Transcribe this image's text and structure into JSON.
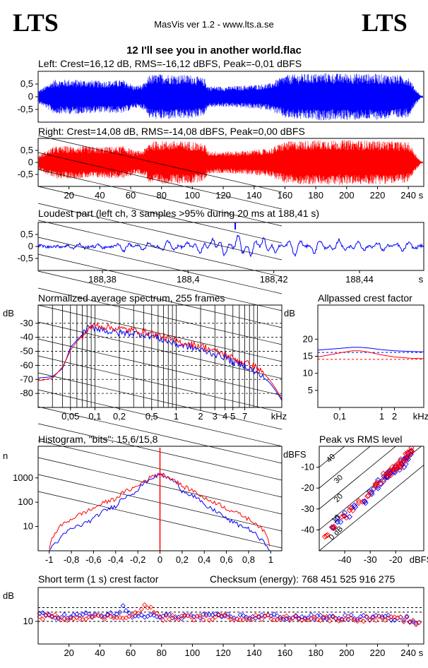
{
  "header": {
    "logo_left": "LTS",
    "logo_right": "LTS",
    "version": "MasVis ver 1.2 - www.lts.a.se",
    "track": "12 I'll see you in another world.flac"
  },
  "colors": {
    "left": "#0000ff",
    "right": "#ff0000",
    "frame": "#000000",
    "dash": "#000000"
  },
  "chart_data": [
    {
      "id": "left",
      "type": "line",
      "title": "Left: Crest=16,12 dB, RMS=-16,12 dBFS, Peak=-0,01 dBFS",
      "xlabel": "",
      "ylabel": "",
      "xlim": [
        0,
        250
      ],
      "ylim": [
        -1,
        1
      ],
      "yticks": [
        "0,5",
        "0",
        "-0,5"
      ],
      "ytick_values": [
        0.5,
        0,
        -0.5
      ],
      "series": [
        {
          "color": "blue",
          "envelope_x": [
            0,
            5,
            10,
            20,
            30,
            40,
            50,
            55,
            60,
            62,
            67,
            70,
            72,
            80,
            90,
            100,
            108,
            110,
            120,
            130,
            140,
            150,
            160,
            170,
            180,
            188,
            190,
            200,
            210,
            220,
            230,
            240,
            243,
            245,
            248
          ],
          "envelope_amp": [
            0.25,
            0.45,
            0.7,
            0.72,
            0.7,
            0.66,
            0.68,
            0.7,
            0.55,
            0.45,
            0.5,
            0.6,
            0.9,
            0.95,
            0.92,
            0.9,
            0.75,
            0.45,
            0.42,
            0.45,
            0.5,
            0.55,
            0.9,
            0.95,
            0.96,
            1.0,
            0.96,
            0.97,
            0.96,
            0.95,
            0.92,
            0.85,
            0.5,
            0.3,
            0.05
          ]
        }
      ]
    },
    {
      "id": "right",
      "type": "line",
      "title": "Right: Crest=14,08 dB, RMS=-14,08 dBFS, Peak=0,00 dBFS",
      "xlabel": "s",
      "ylabel": "",
      "xlim": [
        0,
        250
      ],
      "ylim": [
        -1,
        1
      ],
      "yticks": [
        "0,5",
        "0",
        "-0,5"
      ],
      "ytick_values": [
        0.5,
        0,
        -0.5
      ],
      "xticks": [
        "20",
        "40",
        "60",
        "80",
        "100",
        "120",
        "140",
        "160",
        "180",
        "200",
        "220",
        "240",
        "s"
      ],
      "xtick_values": [
        20,
        40,
        60,
        80,
        100,
        120,
        140,
        160,
        180,
        200,
        220,
        240
      ],
      "series": [
        {
          "color": "red",
          "envelope_x": [
            0,
            5,
            10,
            20,
            30,
            40,
            50,
            55,
            60,
            62,
            67,
            70,
            72,
            80,
            90,
            100,
            108,
            110,
            120,
            130,
            140,
            150,
            160,
            170,
            180,
            188,
            190,
            200,
            210,
            220,
            230,
            240,
            243,
            245,
            248
          ],
          "envelope_amp": [
            0.3,
            0.5,
            0.7,
            0.72,
            0.7,
            0.68,
            0.7,
            0.72,
            0.6,
            0.5,
            0.52,
            0.65,
            0.92,
            0.95,
            0.94,
            0.93,
            0.8,
            0.5,
            0.48,
            0.5,
            0.55,
            0.6,
            0.92,
            0.96,
            0.98,
            1.0,
            0.98,
            0.98,
            0.97,
            0.96,
            0.94,
            0.88,
            0.6,
            0.35,
            0.05
          ]
        }
      ]
    },
    {
      "id": "loudest",
      "type": "line",
      "title": "Loudest part (left  ch, 3 samples >95% during 20 ms at 188,41 s)",
      "xlabel": "s",
      "ylabel": "",
      "xlim": [
        188.365,
        188.455
      ],
      "ylim": [
        -1,
        1
      ],
      "yticks": [
        "0,5",
        "0",
        "-0,5"
      ],
      "ytick_values": [
        0.5,
        0,
        -0.5
      ],
      "xticks": [
        "188,38",
        "188,4",
        "188,42",
        "188,44",
        "s"
      ],
      "xtick_values": [
        188.38,
        188.4,
        188.42,
        188.44
      ],
      "series": [
        {
          "color": "blue",
          "x": [
            188.365,
            188.37,
            188.375,
            188.38,
            188.385,
            188.39,
            188.395,
            188.4,
            188.403,
            188.406,
            188.408,
            188.41,
            188.412,
            188.415,
            188.418,
            188.42,
            188.425,
            188.43,
            188.435,
            188.44,
            188.445,
            188.45,
            188.455
          ],
          "y": [
            0.05,
            0.0,
            0.1,
            -0.1,
            0.2,
            -0.2,
            0.25,
            -0.15,
            0.3,
            -0.35,
            0.45,
            0.1,
            -0.6,
            0.5,
            -0.45,
            0.3,
            -0.4,
            0.35,
            -0.3,
            0.25,
            -0.2,
            0.2,
            0.0
          ]
        }
      ]
    },
    {
      "id": "spectrum",
      "type": "line",
      "title": "Normalized average spectrum, 255 frames",
      "xlabel": "kHz",
      "ylabel": "dB",
      "xscale": "log",
      "xlim": [
        0.02,
        20
      ],
      "ylim": [
        -90,
        -17
      ],
      "yticks": [
        "-30",
        "-40",
        "-50",
        "-60",
        "-70",
        "-80"
      ],
      "ytick_values": [
        -30,
        -40,
        -50,
        -60,
        -70,
        -80
      ],
      "xticks": [
        "0,05",
        "0,1",
        "0,2",
        "0,5",
        "1",
        "2",
        "3",
        "4",
        "5",
        "7",
        "kHz"
      ],
      "xtick_values": [
        0.05,
        0.1,
        0.2,
        0.5,
        1,
        2,
        3,
        4,
        5,
        7
      ],
      "series": [
        {
          "color": "blue",
          "x": [
            0.02,
            0.03,
            0.04,
            0.05,
            0.06,
            0.08,
            0.1,
            0.15,
            0.2,
            0.3,
            0.5,
            0.7,
            1,
            1.5,
            2,
            3,
            4,
            5,
            7,
            10,
            14,
            20
          ],
          "y": [
            -69,
            -68,
            -62,
            -47,
            -42,
            -34,
            -33,
            -36,
            -37,
            -37,
            -39,
            -42,
            -45,
            -47,
            -49,
            -52,
            -54,
            -58,
            -60,
            -66,
            -72,
            -85
          ]
        },
        {
          "color": "red",
          "x": [
            0.02,
            0.03,
            0.04,
            0.05,
            0.06,
            0.08,
            0.1,
            0.15,
            0.2,
            0.3,
            0.5,
            0.7,
            1,
            1.5,
            2,
            3,
            4,
            5,
            7,
            10,
            14,
            20
          ],
          "y": [
            -71,
            -69,
            -61,
            -49,
            -43,
            -35,
            -31,
            -33,
            -34,
            -35,
            -37,
            -40,
            -43,
            -45,
            -46,
            -50,
            -52,
            -55,
            -58,
            -62,
            -70,
            -84
          ]
        }
      ]
    },
    {
      "id": "allpass",
      "type": "line",
      "title": "Allpassed crest factor",
      "xlabel": "kHz",
      "ylabel": "dB",
      "xscale": "log",
      "xlim": [
        0.03,
        10
      ],
      "ylim": [
        0,
        30
      ],
      "yticks": [
        "20",
        "15",
        "10",
        "5"
      ],
      "ytick_values": [
        20,
        15,
        10,
        5
      ],
      "xticks": [
        "0,1",
        "1",
        "2",
        "kHz"
      ],
      "xtick_values": [
        0.1,
        1,
        2
      ],
      "reference_lines": [
        16.1,
        14.1
      ],
      "series": [
        {
          "color": "blue",
          "x": [
            0.03,
            0.05,
            0.1,
            0.2,
            0.3,
            0.5,
            1,
            2,
            5,
            10
          ],
          "y": [
            16.8,
            17.0,
            17.3,
            17.6,
            17.6,
            17.4,
            16.9,
            16.6,
            16.4,
            16.3
          ]
        },
        {
          "color": "red",
          "x": [
            0.03,
            0.05,
            0.1,
            0.2,
            0.3,
            0.5,
            1,
            2,
            5,
            10
          ],
          "y": [
            14.8,
            15.3,
            16.0,
            16.6,
            16.6,
            16.2,
            15.4,
            14.8,
            14.4,
            14.3
          ]
        }
      ]
    },
    {
      "id": "histogram",
      "type": "line",
      "title": "Histogram, \"bits\": 15,6/15,8",
      "xlabel": "",
      "ylabel": "n",
      "yscale": "log",
      "xlim": [
        -1.1,
        1.1
      ],
      "ylim": [
        1,
        20000
      ],
      "yticks": [
        "1000",
        "100",
        "10"
      ],
      "ytick_values": [
        1000,
        100,
        10
      ],
      "xticks": [
        "-1",
        "-0,8",
        "-0,6",
        "-0,4",
        "-0,2",
        "0",
        "0,2",
        "0,4",
        "0,6",
        "0,8",
        "1"
      ],
      "xtick_values": [
        -1,
        -0.8,
        -0.6,
        -0.4,
        -0.2,
        0,
        0.2,
        0.4,
        0.6,
        0.8,
        1
      ],
      "series": [
        {
          "color": "blue",
          "x": [
            -1,
            -0.9,
            -0.8,
            -0.7,
            -0.6,
            -0.4,
            -0.2,
            0,
            0.2,
            0.4,
            0.6,
            0.7,
            0.8,
            0.9,
            1
          ],
          "y": [
            1,
            3,
            8,
            12,
            20,
            70,
            300,
            1400,
            300,
            70,
            20,
            12,
            8,
            3,
            1
          ]
        },
        {
          "color": "red",
          "x": [
            -1,
            -0.95,
            -0.9,
            -0.8,
            -0.7,
            -0.6,
            -0.4,
            -0.2,
            0,
            0.2,
            0.4,
            0.6,
            0.7,
            0.8,
            0.9,
            0.95,
            1
          ],
          "y": [
            1,
            5,
            10,
            20,
            35,
            55,
            140,
            450,
            1500,
            450,
            140,
            55,
            35,
            20,
            10,
            5,
            1
          ]
        }
      ]
    },
    {
      "id": "peak_rms",
      "type": "scatter",
      "title": "Peak vs RMS level",
      "xlabel": "dBFS",
      "ylabel": "dBFS",
      "xlim": [
        -50,
        -9
      ],
      "ylim": [
        -50,
        0
      ],
      "yticks": [
        "-10",
        "-20",
        "-30",
        "-40"
      ],
      "ytick_values": [
        -10,
        -20,
        -30,
        -40
      ],
      "xticks": [
        "-40",
        "-30",
        "-20",
        "dBFS"
      ],
      "xtick_values": [
        -40,
        -30,
        -20
      ],
      "diagonal_labels": [
        "40",
        "30",
        "20",
        "10",
        "0 dB"
      ],
      "series": [
        {
          "color": "blue",
          "x": [
            -45,
            -42,
            -39,
            -36,
            -33,
            -30,
            -28,
            -26,
            -24,
            -23,
            -22,
            -21,
            -20,
            -19,
            -18,
            -17,
            -16,
            -15,
            -14
          ],
          "y": [
            -38,
            -35,
            -33,
            -29,
            -26,
            -22,
            -20,
            -17,
            -15,
            -14,
            -13,
            -12,
            -11,
            -10,
            -9,
            -8,
            -6,
            -5,
            -3
          ]
        },
        {
          "color": "red",
          "x": [
            -47,
            -44,
            -40,
            -37,
            -34,
            -31,
            -28,
            -26,
            -24,
            -23,
            -22,
            -21,
            -20,
            -19,
            -18,
            -17,
            -16,
            -15,
            -14
          ],
          "y": [
            -42,
            -38,
            -34,
            -30,
            -27,
            -23,
            -19,
            -17,
            -14,
            -13,
            -12,
            -11,
            -10,
            -9,
            -8,
            -7,
            -5,
            -3,
            -2
          ]
        }
      ]
    },
    {
      "id": "short_crest",
      "type": "scatter",
      "title": "Short term (1 s) crest factor",
      "xlabel": "s",
      "ylabel": "dB",
      "xlim": [
        0,
        250
      ],
      "ylim": [
        0,
        25
      ],
      "yticks": [
        "10"
      ],
      "ytick_values": [
        10
      ],
      "reference_lines": [
        16.1,
        14.1
      ],
      "xticks": [
        "20",
        "40",
        "60",
        "80",
        "100",
        "120",
        "140",
        "160",
        "180",
        "200",
        "220",
        "240",
        "s"
      ],
      "xtick_values": [
        20,
        40,
        60,
        80,
        100,
        120,
        140,
        160,
        180,
        200,
        220,
        240
      ],
      "series": [
        {
          "color": "blue",
          "x": [
            2,
            10,
            20,
            30,
            40,
            50,
            55,
            60,
            70,
            80,
            90,
            100,
            110,
            120,
            130,
            140,
            150,
            160,
            170,
            180,
            190,
            200,
            210,
            220,
            230,
            240,
            245
          ],
          "y": [
            13,
            12.5,
            12,
            13,
            12.5,
            13,
            16,
            12,
            12.5,
            12,
            12.3,
            12.2,
            12,
            12.5,
            12,
            12.1,
            12.4,
            11.8,
            12,
            11.7,
            11.8,
            11.9,
            11.6,
            11.8,
            11.5,
            11.2,
            9
          ]
        },
        {
          "color": "red",
          "x": [
            2,
            10,
            20,
            30,
            40,
            50,
            55,
            60,
            70,
            80,
            90,
            100,
            110,
            120,
            130,
            140,
            150,
            160,
            170,
            180,
            190,
            200,
            210,
            220,
            230,
            240,
            245
          ],
          "y": [
            12,
            12,
            11.5,
            12,
            11.8,
            12,
            12.5,
            11.8,
            17,
            11.5,
            11.8,
            11.7,
            11.5,
            11.9,
            11.6,
            11.7,
            11.8,
            11.4,
            11.5,
            11.3,
            11.2,
            11.3,
            11.1,
            11.2,
            11,
            10.8,
            8.5
          ]
        }
      ]
    }
  ],
  "checksum": "Checksum (energy):   768 451 525 916 275"
}
